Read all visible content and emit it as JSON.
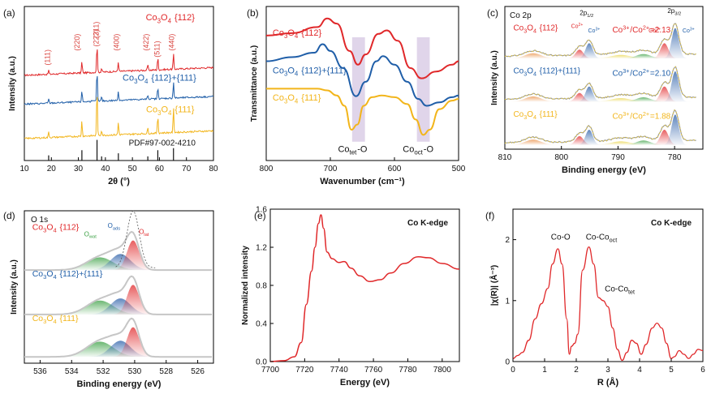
{
  "colors": {
    "red": "#e0282a",
    "blue": "#1f5ea8",
    "yellow": "#f2b51b",
    "black": "#111111",
    "band": "#c6b3d9",
    "green": "#3aa043",
    "orange": "#e8883a",
    "gray": "#bdbdbd"
  },
  "chart_data": [
    {
      "id": "a",
      "type": "line",
      "panel_label": "(a)",
      "xlabel": "2θ (°)",
      "ylabel": "Intensity (a.u.)",
      "xlim": [
        10,
        80
      ],
      "xticks": [
        "10",
        "20",
        "30",
        "40",
        "50",
        "60",
        "70",
        "80"
      ],
      "series": [
        {
          "name": "Co3O4 {112}",
          "color": "red",
          "offset": 3.1,
          "peaks": [
            [
              19,
              0.15
            ],
            [
              31.3,
              0.4
            ],
            [
              36.9,
              1.05
            ],
            [
              38.6,
              0.15
            ],
            [
              44.8,
              0.35
            ],
            [
              55.7,
              0.2
            ],
            [
              59.4,
              0.45
            ],
            [
              65.2,
              0.55
            ]
          ]
        },
        {
          "name": "Co3O4 {112}+{111}",
          "color": "blue",
          "offset": 2.05,
          "peaks": [
            [
              19,
              0.15
            ],
            [
              31.3,
              0.4
            ],
            [
              36.9,
              1.15
            ],
            [
              38.6,
              0.15
            ],
            [
              44.8,
              0.3
            ],
            [
              55.7,
              0.15
            ],
            [
              59.4,
              0.4
            ],
            [
              65.2,
              0.6
            ]
          ]
        },
        {
          "name": "Co3O4 {111}",
          "color": "yellow",
          "offset": 0.8,
          "peaks": [
            [
              19,
              0.2
            ],
            [
              31.3,
              0.55
            ],
            [
              36.9,
              1.75
            ],
            [
              38.6,
              0.2
            ],
            [
              44.8,
              0.45
            ],
            [
              55.7,
              0.2
            ],
            [
              59.4,
              0.65
            ],
            [
              65.2,
              0.9
            ]
          ]
        }
      ],
      "reference": {
        "label": "PDF#97-002-4210",
        "sticks": [
          [
            19,
            0.25
          ],
          [
            31.3,
            0.5
          ],
          [
            36.9,
            1.0
          ],
          [
            38.6,
            0.2
          ],
          [
            44.8,
            0.35
          ],
          [
            55.7,
            0.2
          ],
          [
            59.4,
            0.5
          ],
          [
            65.2,
            0.6
          ]
        ]
      },
      "peak_labels": [
        {
          "text": "(111)",
          "x": 19.5,
          "y": 3.75
        },
        {
          "text": "(220)",
          "x": 30.5,
          "y": 4.3
        },
        {
          "text": "(311)",
          "x": 37.5,
          "y": 4.75
        },
        {
          "text": "(222)",
          "x": 37.5,
          "y": 4.45
        },
        {
          "text": "(400)",
          "x": 45,
          "y": 4.3
        },
        {
          "text": "(422)",
          "x": 56,
          "y": 4.3
        },
        {
          "text": "(511)",
          "x": 60,
          "y": 4.05
        },
        {
          "text": "(440)",
          "x": 65.5,
          "y": 4.3
        }
      ],
      "labels": [
        {
          "text": "Co3O4 {112}",
          "color": "red",
          "x": 64,
          "y": 5.1
        },
        {
          "text": "Co3O4 {112}+{111}",
          "color": "blue",
          "x": 60,
          "y": 2.9
        },
        {
          "text": "Co3O4 {111}",
          "color": "yellow",
          "x": 64,
          "y": 1.75
        },
        {
          "text": "PDF#97-002-4210",
          "color": "black",
          "x": 61,
          "y": 0.55
        }
      ]
    },
    {
      "id": "b",
      "type": "line",
      "panel_label": "(b)",
      "xlabel": "Wavenumber (cm⁻¹)",
      "ylabel": "Transmittance (a.u.)",
      "xlim": [
        800,
        500
      ],
      "xticks": [
        "800",
        "700",
        "600",
        "500"
      ],
      "bands": [
        [
          666,
          646
        ],
        [
          565,
          545
        ]
      ],
      "series": [
        {
          "name": "Co3O4 {112}",
          "color": "red",
          "points": [
            [
              800,
              3.05
            ],
            [
              760,
              3.12
            ],
            [
              720,
              3.3
            ],
            [
              705,
              3.55
            ],
            [
              690,
              3.4
            ],
            [
              670,
              2.6
            ],
            [
              657,
              2.2
            ],
            [
              645,
              2.5
            ],
            [
              625,
              3.1
            ],
            [
              612,
              3.2
            ],
            [
              595,
              2.9
            ],
            [
              575,
              2.1
            ],
            [
              558,
              1.8
            ],
            [
              535,
              2.0
            ],
            [
              510,
              2.2
            ],
            [
              500,
              2.3
            ]
          ]
        },
        {
          "name": "Co3O4 {112}+{111}",
          "color": "blue",
          "points": [
            [
              800,
              2.3
            ],
            [
              760,
              2.42
            ],
            [
              725,
              2.55
            ],
            [
              712,
              2.8
            ],
            [
              700,
              2.6
            ],
            [
              680,
              2.1
            ],
            [
              660,
              1.28
            ],
            [
              645,
              1.7
            ],
            [
              628,
              2.3
            ],
            [
              618,
              2.45
            ],
            [
              600,
              2.2
            ],
            [
              580,
              1.7
            ],
            [
              563,
              1.2
            ],
            [
              550,
              1.0
            ],
            [
              530,
              1.1
            ],
            [
              510,
              1.25
            ],
            [
              500,
              1.3
            ]
          ]
        },
        {
          "name": "Co3O4 {111}",
          "color": "yellow",
          "points": [
            [
              800,
              1.5
            ],
            [
              750,
              1.5
            ],
            [
              720,
              1.5
            ],
            [
              705,
              1.45
            ],
            [
              690,
              1.3
            ],
            [
              678,
              1.0
            ],
            [
              667,
              0.3
            ],
            [
              658,
              0.45
            ],
            [
              648,
              1.0
            ],
            [
              635,
              1.25
            ],
            [
              620,
              1.3
            ],
            [
              600,
              1.25
            ],
            [
              580,
              1.05
            ],
            [
              567,
              0.6
            ],
            [
              555,
              0.15
            ],
            [
              545,
              0.3
            ],
            [
              530,
              0.9
            ],
            [
              510,
              1.15
            ],
            [
              500,
              1.2
            ]
          ]
        }
      ],
      "labels": [
        {
          "text": "Co3O4 {112}",
          "color": "red",
          "x": 790,
          "y": 3.05
        },
        {
          "text": "Co3O4 {112}+{111}",
          "color": "blue",
          "x": 790,
          "y": 1.95
        },
        {
          "text": "Co3O4 {111}",
          "color": "yellow",
          "x": 790,
          "y": 1.15
        },
        {
          "text": "Cotet-O",
          "color": "black",
          "x": 688,
          "y": -0.35
        },
        {
          "text": "Cooct-O",
          "color": "black",
          "x": 587,
          "y": -0.35
        }
      ]
    },
    {
      "id": "c",
      "type": "line",
      "panel_label": "(c)",
      "title": "Co 2p",
      "xlabel": "Binding energy (eV)",
      "ylabel": "Intensity (a.u.)",
      "xlim": [
        810,
        775
      ],
      "xticks": [
        "810",
        "800",
        "790",
        "780"
      ],
      "spectra": [
        {
          "name": "Co3O4 {112}",
          "color": "red",
          "offset": 2.1,
          "ratio": "Co3+/Co2+=2.13"
        },
        {
          "name": "Co3O4 {112}+{111}",
          "color": "blue",
          "offset": 1.1,
          "ratio": "Co3+/Co2+=2.10"
        },
        {
          "name": "Co3O4 {111}",
          "color": "yellow",
          "offset": 0.1,
          "ratio": "Co3+/Co2+=1.88"
        }
      ],
      "peak_labels": [
        {
          "text": "2p1/2",
          "x": 795.5,
          "y": 3.1
        },
        {
          "text": "2p3/2",
          "x": 780,
          "y": 3.15
        },
        {
          "text": "Co2+",
          "x": 797.2,
          "y": 2.8
        },
        {
          "text": "Co3+",
          "x": 794.2,
          "y": 2.7
        },
        {
          "text": "Co2+",
          "x": 783.5,
          "y": 2.7
        },
        {
          "text": "Co3+",
          "x": 777.5,
          "y": 2.7
        }
      ],
      "labels": [
        {
          "text": "Co3O4 {112}",
          "color": "red",
          "x": 808.5,
          "y": 2.75
        },
        {
          "text": "Co3O4 {112}+{111}",
          "color": "blue",
          "x": 808.5,
          "y": 1.75
        },
        {
          "text": "Co3O4 {111}",
          "color": "yellow",
          "x": 808.5,
          "y": 0.75
        }
      ]
    },
    {
      "id": "d",
      "type": "line",
      "panel_label": "(d)",
      "title": "O 1s",
      "xlabel": "Binding energy (eV)",
      "ylabel": "Intensity (a.u.)",
      "xlim": [
        537,
        525
      ],
      "xticks": [
        "536",
        "534",
        "532",
        "530",
        "528",
        "526"
      ],
      "spectra": [
        {
          "name": "Co3O4 {112}",
          "color": "red",
          "offset": 2.2
        },
        {
          "name": "Co3O4 {112}+{111}",
          "color": "blue",
          "offset": 1.15
        },
        {
          "name": "Co3O4 {111}",
          "color": "yellow",
          "offset": 0.15
        }
      ],
      "peak_labels": [
        {
          "text": "Owat",
          "x": 532.8,
          "y": 3.0
        },
        {
          "text": "Oads",
          "x": 531.3,
          "y": 3.2
        },
        {
          "text": "Olat",
          "x": 529.4,
          "y": 3.05
        }
      ],
      "labels": [
        {
          "text": "Co3O4 {112}",
          "color": "red",
          "x": 536.5,
          "y": 3.15
        },
        {
          "text": "Co3O4 {112}+{111}",
          "color": "blue",
          "x": 536.5,
          "y": 2.05
        },
        {
          "text": "Co3O4 {111}",
          "color": "yellow",
          "x": 536.5,
          "y": 1.0
        }
      ]
    },
    {
      "id": "e",
      "type": "line",
      "panel_label": "(e)",
      "xlabel": "Energy (eV)",
      "ylabel": "Normalized intensity",
      "xlim": [
        7700,
        7810
      ],
      "ylim": [
        0,
        1.6
      ],
      "xticks": [
        "7700",
        "7720",
        "7740",
        "7760",
        "7780",
        "7800"
      ],
      "yticks": [
        "0.0",
        "0.4",
        "0.8",
        "1.2",
        "1.6"
      ],
      "annotation": "Co K-edge",
      "series": [
        {
          "name": "Co K-edge",
          "color": "red",
          "points": [
            [
              7700,
              0
            ],
            [
              7708,
              0.01
            ],
            [
              7714,
              0.05
            ],
            [
              7718,
              0.2
            ],
            [
              7721,
              0.6
            ],
            [
              7724,
              0.95
            ],
            [
              7726,
              1.2
            ],
            [
              7728,
              1.45
            ],
            [
              7729.5,
              1.54
            ],
            [
              7731,
              1.4
            ],
            [
              7733,
              1.15
            ],
            [
              7736,
              1.08
            ],
            [
              7740,
              1.04
            ],
            [
              7743,
              1.05
            ],
            [
              7747,
              0.98
            ],
            [
              7752,
              0.9
            ],
            [
              7758,
              0.84
            ],
            [
              7764,
              0.86
            ],
            [
              7770,
              0.93
            ],
            [
              7778,
              1.03
            ],
            [
              7786,
              1.1
            ],
            [
              7792,
              1.09
            ],
            [
              7800,
              1.03
            ],
            [
              7810,
              0.97
            ]
          ]
        }
      ]
    },
    {
      "id": "f",
      "type": "line",
      "panel_label": "(f)",
      "xlabel": "R (Å)",
      "ylabel": "|χ(R)| (Å⁻³)",
      "xlim": [
        0,
        6
      ],
      "ylim": [
        0,
        2.5
      ],
      "xticks": [
        "0",
        "1",
        "2",
        "3",
        "4",
        "5",
        "6"
      ],
      "yticks": [
        "0",
        "1",
        "2"
      ],
      "annotation": "Co K-edge",
      "series": [
        {
          "name": "Co K-edge",
          "color": "red",
          "points": [
            [
              0,
              0.05
            ],
            [
              0.15,
              0.1
            ],
            [
              0.3,
              0.15
            ],
            [
              0.5,
              0.35
            ],
            [
              0.7,
              0.7
            ],
            [
              0.9,
              0.95
            ],
            [
              1.1,
              1.2
            ],
            [
              1.25,
              1.6
            ],
            [
              1.42,
              1.85
            ],
            [
              1.55,
              1.6
            ],
            [
              1.7,
              0.7
            ],
            [
              1.78,
              0.12
            ],
            [
              1.85,
              0.25
            ],
            [
              1.95,
              0.3
            ],
            [
              2.05,
              0.45
            ],
            [
              2.2,
              1.5
            ],
            [
              2.4,
              1.88
            ],
            [
              2.55,
              1.6
            ],
            [
              2.7,
              1.05
            ],
            [
              2.85,
              1.0
            ],
            [
              3.0,
              0.9
            ],
            [
              3.15,
              0.55
            ],
            [
              3.3,
              0.2
            ],
            [
              3.45,
              0.02
            ],
            [
              3.6,
              0.15
            ],
            [
              3.75,
              0.35
            ],
            [
              3.9,
              0.3
            ],
            [
              4.05,
              0.12
            ],
            [
              4.2,
              0.28
            ],
            [
              4.4,
              0.55
            ],
            [
              4.55,
              0.63
            ],
            [
              4.7,
              0.55
            ],
            [
              4.85,
              0.3
            ],
            [
              5.0,
              0.05
            ],
            [
              5.1,
              0.08
            ],
            [
              5.25,
              0.18
            ],
            [
              5.4,
              0.12
            ],
            [
              5.55,
              0.05
            ],
            [
              5.7,
              0.12
            ],
            [
              5.85,
              0.2
            ],
            [
              6.0,
              0.18
            ]
          ]
        }
      ],
      "labels": [
        {
          "text": "Co-O",
          "color": "black",
          "x": 1.2,
          "y": 2.0
        },
        {
          "text": "Co-Cooct",
          "color": "black",
          "x": 2.3,
          "y": 2.0
        },
        {
          "text": "Co-Cotet",
          "color": "black",
          "x": 2.9,
          "y": 1.15
        }
      ]
    }
  ]
}
